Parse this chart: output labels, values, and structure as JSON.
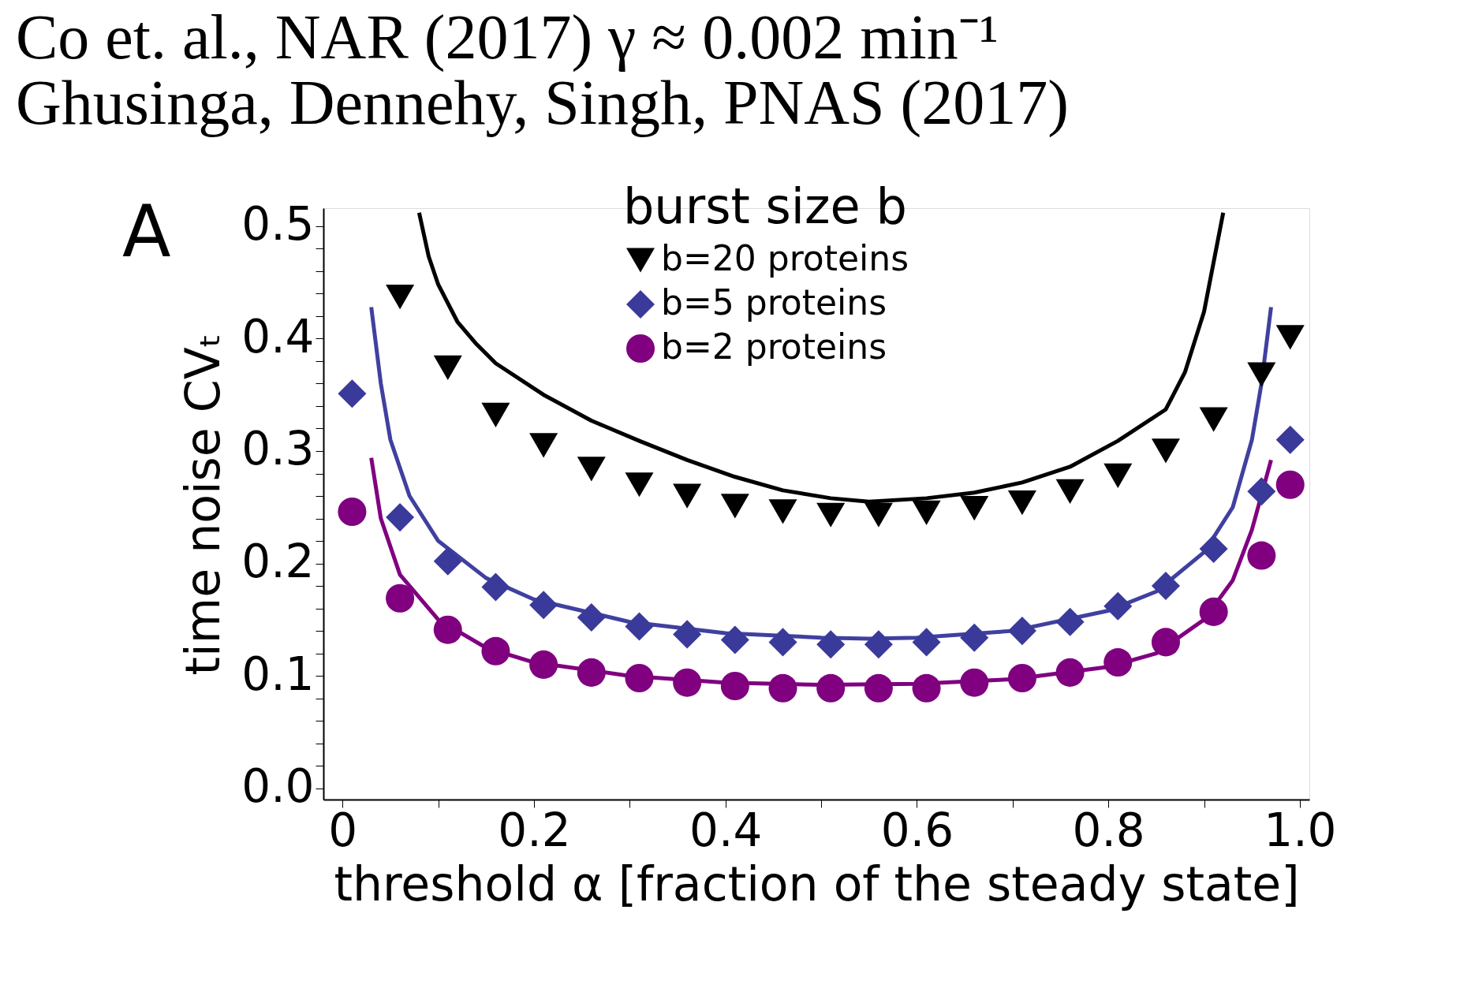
{
  "chart_data": {
    "type": "scatter",
    "title": "Co et. al., NAR (2017)   γ ≈ 0.002 min⁻¹",
    "subtitle": "Ghusinga, Dennehy, Singh, PNAS (2017)",
    "xlabel": "threshold α [fraction of the steady state]",
    "ylabel": "time noise CVₜ",
    "legend_title": "burst size b",
    "legend": "top",
    "annotations": [
      "A"
    ],
    "grid": false,
    "xlim": [
      -0.02,
      1.01
    ],
    "ylim": [
      -0.01,
      0.516
    ],
    "xticks": [
      {
        "value": 0,
        "label": "0"
      },
      {
        "value": 0.1,
        "label": null
      },
      0.2,
      {
        "value": 0.3,
        "label": null
      },
      0.4,
      {
        "value": 0.5,
        "label": null
      },
      0.6,
      {
        "value": 0.7,
        "label": null
      },
      0.8,
      {
        "value": 0.9,
        "label": null
      },
      {
        "value": 1,
        "label": "1.0"
      }
    ],
    "yticks": [
      {
        "value": 0,
        "label": "0.0"
      },
      {
        "value": 0.02,
        "label": null
      },
      {
        "value": 0.04,
        "label": null
      },
      {
        "value": 0.06,
        "label": null
      },
      {
        "value": 0.08,
        "label": null
      },
      0.1,
      {
        "value": 0.12,
        "label": null
      },
      {
        "value": 0.14,
        "label": null
      },
      {
        "value": 0.16,
        "label": null
      },
      {
        "value": 0.18,
        "label": null
      },
      0.2,
      {
        "value": 0.22,
        "label": null
      },
      {
        "value": 0.24,
        "label": null
      },
      {
        "value": 0.26,
        "label": null
      },
      {
        "value": 0.28,
        "label": null
      },
      0.3,
      {
        "value": 0.32,
        "label": null
      },
      {
        "value": 0.34,
        "label": null
      },
      {
        "value": 0.36,
        "label": null
      },
      {
        "value": 0.38,
        "label": null
      },
      0.4,
      {
        "value": 0.42,
        "label": null
      },
      {
        "value": 0.44,
        "label": null
      },
      {
        "value": 0.46,
        "label": null
      },
      {
        "value": 0.48,
        "label": null
      },
      0.5
    ],
    "x": [
      0.01,
      0.06,
      0.11,
      0.16,
      0.21,
      0.26,
      0.31,
      0.36,
      0.41,
      0.46,
      0.51,
      0.56,
      0.61,
      0.66,
      0.71,
      0.76,
      0.81,
      0.86,
      0.91,
      0.96,
      0.99
    ],
    "series": [
      {
        "name": "b=20 proteins",
        "type": "scatter",
        "marker": "triangle",
        "color": "#000000",
        "values": [
          null,
          0.437,
          0.374,
          0.332,
          0.305,
          0.284,
          0.27,
          0.26,
          0.251,
          0.246,
          0.243,
          0.243,
          0.245,
          0.249,
          0.254,
          0.264,
          0.278,
          0.3,
          0.328,
          0.368,
          0.401
        ]
      },
      {
        "name": "b=5   proteins",
        "type": "scatter",
        "marker": "diamond",
        "color": "#3a3a9a",
        "values": [
          0.351,
          0.241,
          0.202,
          0.179,
          0.163,
          0.152,
          0.144,
          0.137,
          0.132,
          0.13,
          0.128,
          0.128,
          0.13,
          0.134,
          0.14,
          0.148,
          0.162,
          0.18,
          0.213,
          0.264,
          0.31
        ]
      },
      {
        "name": "b=2   proteins",
        "type": "scatter",
        "marker": "circle",
        "color": "#800080",
        "values": [
          0.246,
          0.169,
          0.141,
          0.122,
          0.11,
          0.103,
          0.098,
          0.094,
          0.091,
          0.089,
          0.089,
          0.089,
          0.089,
          0.094,
          0.098,
          0.103,
          0.112,
          0.13,
          0.157,
          0.207,
          0.27
        ]
      },
      {
        "type": "line",
        "color": "#000000",
        "x": [
          0.08,
          0.09,
          0.1,
          0.12,
          0.14,
          0.16,
          0.21,
          0.26,
          0.31,
          0.36,
          0.41,
          0.46,
          0.51,
          0.55,
          0.61,
          0.66,
          0.71,
          0.76,
          0.81,
          0.86,
          0.88,
          0.9,
          0.92
        ],
        "values": [
          0.512,
          0.473,
          0.448,
          0.415,
          0.395,
          0.378,
          0.35,
          0.327,
          0.309,
          0.292,
          0.277,
          0.265,
          0.258,
          0.255,
          0.258,
          0.263,
          0.272,
          0.286,
          0.309,
          0.337,
          0.37,
          0.424,
          0.512
        ]
      },
      {
        "type": "line",
        "color": "#4040a0",
        "x": [
          0.03,
          0.04,
          0.05,
          0.07,
          0.1,
          0.15,
          0.2,
          0.3,
          0.4,
          0.5,
          0.55,
          0.6,
          0.7,
          0.8,
          0.85,
          0.9,
          0.93,
          0.95,
          0.96,
          0.97
        ],
        "values": [
          0.428,
          0.36,
          0.31,
          0.26,
          0.22,
          0.187,
          0.168,
          0.148,
          0.138,
          0.134,
          0.133,
          0.134,
          0.14,
          0.158,
          0.175,
          0.21,
          0.25,
          0.31,
          0.36,
          0.428
        ]
      },
      {
        "type": "line",
        "color": "#800080",
        "x": [
          0.03,
          0.04,
          0.06,
          0.1,
          0.15,
          0.2,
          0.3,
          0.4,
          0.5,
          0.6,
          0.7,
          0.8,
          0.85,
          0.9,
          0.93,
          0.95,
          0.97
        ],
        "values": [
          0.294,
          0.24,
          0.19,
          0.15,
          0.125,
          0.112,
          0.1,
          0.094,
          0.092,
          0.093,
          0.097,
          0.108,
          0.12,
          0.15,
          0.185,
          0.23,
          0.292
        ]
      }
    ]
  }
}
